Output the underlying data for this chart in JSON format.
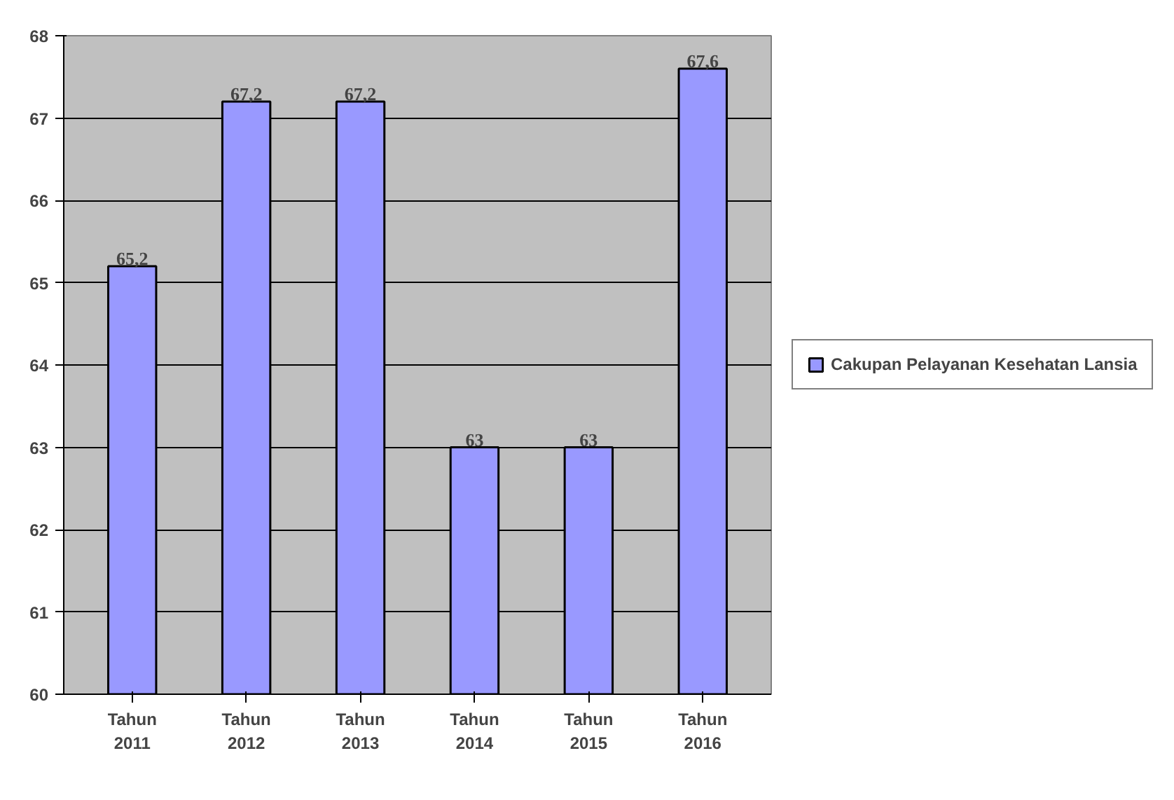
{
  "chart_data": {
    "type": "bar",
    "categories": [
      "Tahun 2011",
      "Tahun 2012",
      "Tahun 2013",
      "Tahun 2014",
      "Tahun 2015",
      "Tahun 2016"
    ],
    "series": [
      {
        "name": "Cakupan Pelayanan Kesehatan Lansia",
        "color": "#9999ff",
        "values": [
          65.2,
          67.2,
          67.2,
          63,
          63,
          67.6
        ],
        "value_labels": [
          "65,2",
          "67,2",
          "67,2",
          "63",
          "63",
          "67,6"
        ]
      }
    ],
    "ylim": [
      60,
      68
    ],
    "yticks": [
      60,
      61,
      62,
      63,
      64,
      65,
      66,
      67,
      68
    ],
    "grid": "y",
    "legend": "right"
  }
}
